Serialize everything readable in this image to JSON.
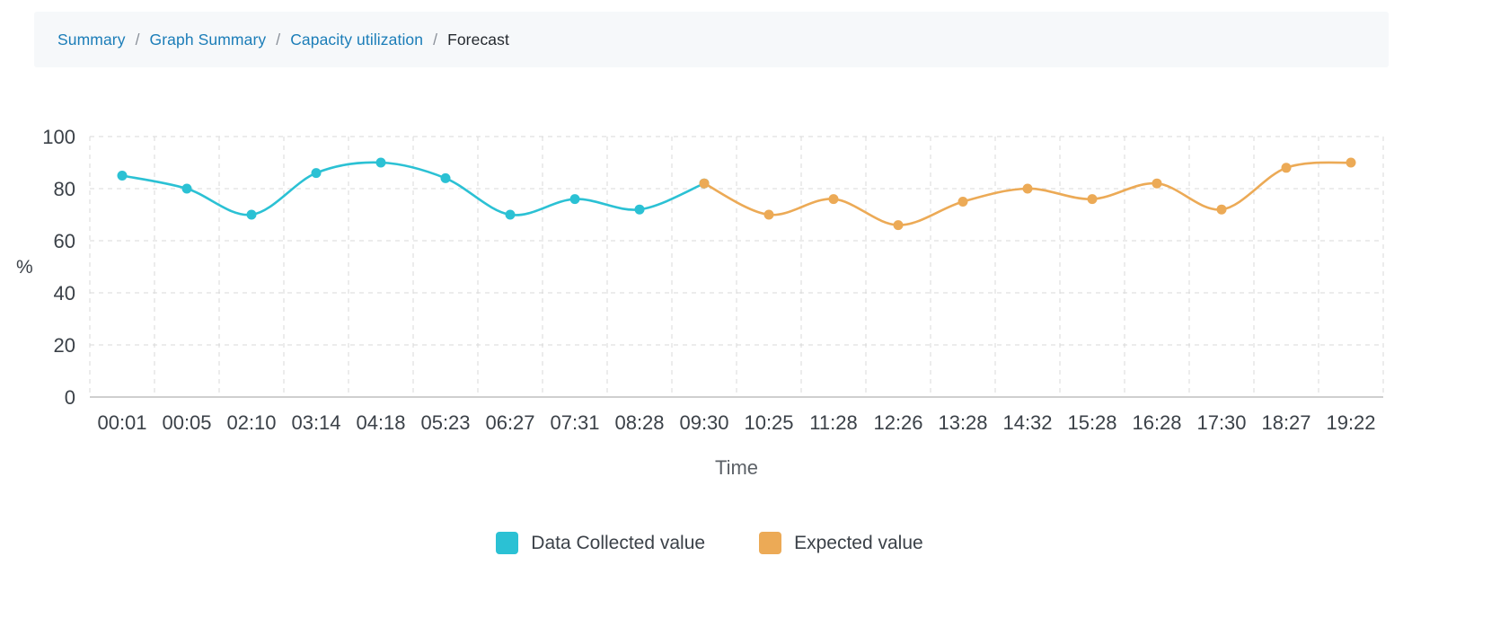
{
  "breadcrumb": {
    "separator": "/",
    "items": [
      {
        "label": "Summary",
        "type": "link"
      },
      {
        "label": "Graph Summary",
        "type": "link"
      },
      {
        "label": "Capacity utilization",
        "type": "link"
      },
      {
        "label": "Forecast",
        "type": "current"
      }
    ]
  },
  "colors": {
    "link": "#1b7db8",
    "breadcrumb_bg": "#f6f8fa",
    "grid": "#d8d8d8",
    "axis_line": "#bfbfbf",
    "text": "#3b4148",
    "axis_title": "#5c6167",
    "series_collected": "#2bc1d4",
    "series_expected": "#ecaa56"
  },
  "chart_data": {
    "type": "line",
    "smooth": true,
    "point_markers": true,
    "grid": "dashed",
    "legend_position": "bottom",
    "title": "",
    "xlabel": "Time",
    "ylabel": "%",
    "ylim": [
      0,
      100
    ],
    "yticks": [
      0,
      20,
      40,
      60,
      80,
      100
    ],
    "x": [
      "00:01",
      "00:05",
      "02:10",
      "03:14",
      "04:18",
      "05:23",
      "06:27",
      "07:31",
      "08:28",
      "09:30",
      "10:25",
      "11:28",
      "12:26",
      "13:28",
      "14:32",
      "15:28",
      "16:28",
      "17:30",
      "18:27",
      "19:22"
    ],
    "series": [
      {
        "name": "Data Collected value",
        "color": "#2bc1d4",
        "values": [
          85,
          80,
          70,
          86,
          90,
          84,
          70,
          76,
          72,
          82,
          null,
          null,
          null,
          null,
          null,
          null,
          null,
          null,
          null,
          null
        ]
      },
      {
        "name": "Expected value",
        "color": "#ecaa56",
        "values": [
          null,
          null,
          null,
          null,
          null,
          null,
          null,
          null,
          null,
          82,
          70,
          76,
          66,
          75,
          80,
          76,
          82,
          72,
          88,
          90
        ]
      }
    ]
  }
}
